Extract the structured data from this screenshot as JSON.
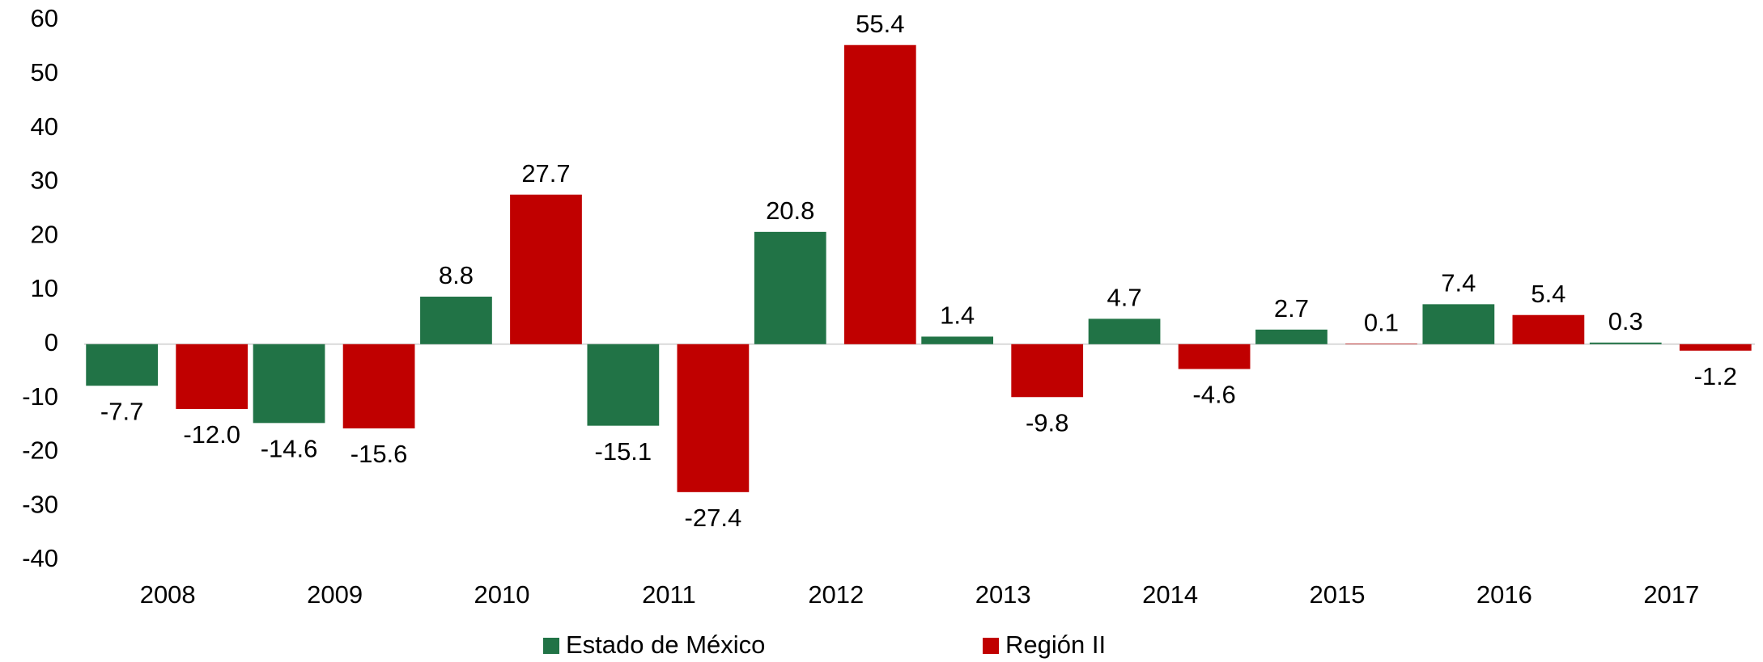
{
  "chart_data": {
    "type": "bar",
    "categories": [
      "2008",
      "2009",
      "2010",
      "2011",
      "2012",
      "2013",
      "2014",
      "2015",
      "2016",
      "2017"
    ],
    "series": [
      {
        "name": "Estado de México",
        "color": "#217346",
        "values": [
          -7.7,
          -14.6,
          8.8,
          -15.1,
          20.8,
          1.4,
          4.7,
          2.7,
          7.4,
          0.3
        ],
        "value_labels": [
          "-7.7",
          "-14.6",
          "8.8",
          "-15.1",
          "20.8",
          "1.4",
          "4.7",
          "2.7",
          "7.4",
          "0.3"
        ]
      },
      {
        "name": "Región II",
        "color": "#c00000",
        "values": [
          -12.0,
          -15.6,
          27.7,
          -27.4,
          55.4,
          -9.8,
          -4.6,
          0.1,
          5.4,
          -1.2
        ],
        "value_labels": [
          "-12.0",
          "-15.6",
          "27.7",
          "-27.4",
          "55.4",
          "-9.8",
          "-4.6",
          "0.1",
          "5.4",
          "-1.2"
        ]
      }
    ],
    "ylim": [
      -40,
      60
    ],
    "yticks": [
      -40,
      -30,
      -20,
      -10,
      0,
      10,
      20,
      30,
      40,
      50,
      60
    ],
    "legend": "bottom"
  }
}
